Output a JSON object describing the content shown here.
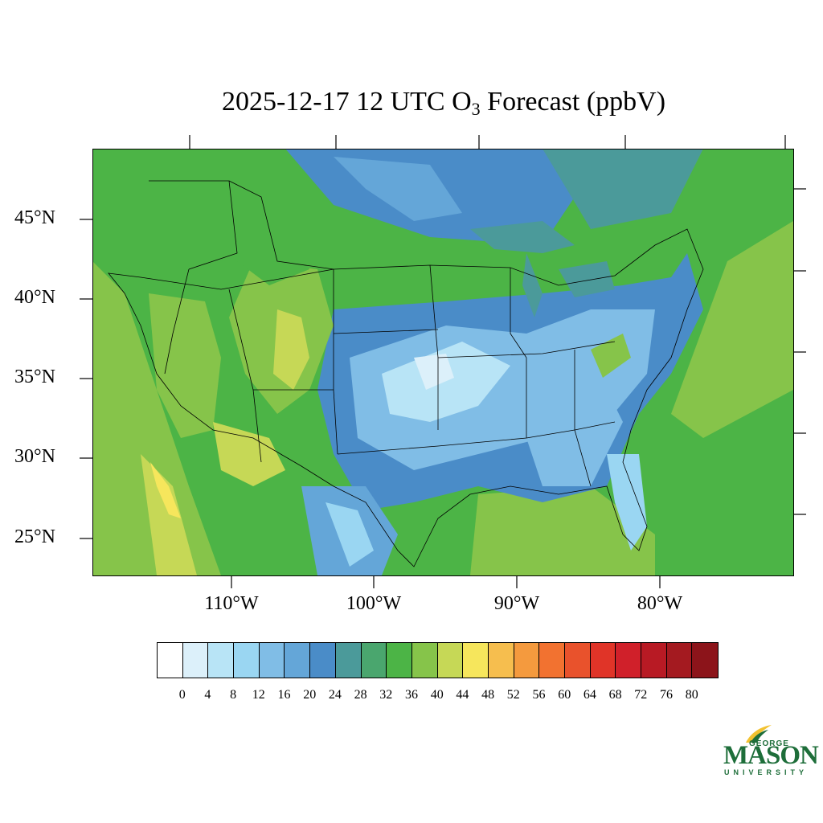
{
  "title": {
    "prefix": "2025-12-17 12 UTC O",
    "subscript": "3",
    "suffix": " Forecast (ppbV)"
  },
  "map": {
    "lat_labels": [
      "45°N",
      "40°N",
      "35°N",
      "30°N",
      "25°N"
    ],
    "lon_labels": [
      "110°W",
      "100°W",
      "90°W",
      "80°W"
    ]
  },
  "colorbar": {
    "colors": [
      "#ffffff",
      "#dcf0fa",
      "#b8e4f6",
      "#9ad6f2",
      "#80bde6",
      "#64a6d8",
      "#4a8cc8",
      "#4b9a9a",
      "#4aa66e",
      "#4cb446",
      "#86c44a",
      "#c6d856",
      "#f6e65c",
      "#f6be4e",
      "#f49a3e",
      "#f27230",
      "#e9522c",
      "#e03428",
      "#d0202a",
      "#b81a24",
      "#a41a20",
      "#8c141a"
    ],
    "tick_labels": [
      "0",
      "4",
      "8",
      "12",
      "16",
      "20",
      "24",
      "28",
      "32",
      "36",
      "40",
      "44",
      "48",
      "52",
      "56",
      "60",
      "64",
      "68",
      "72",
      "76",
      "80"
    ]
  },
  "logo": {
    "top": "GEORGE",
    "main": "MASON",
    "bottom": "UNIVERSITY",
    "color": "#1e6e3a"
  }
}
